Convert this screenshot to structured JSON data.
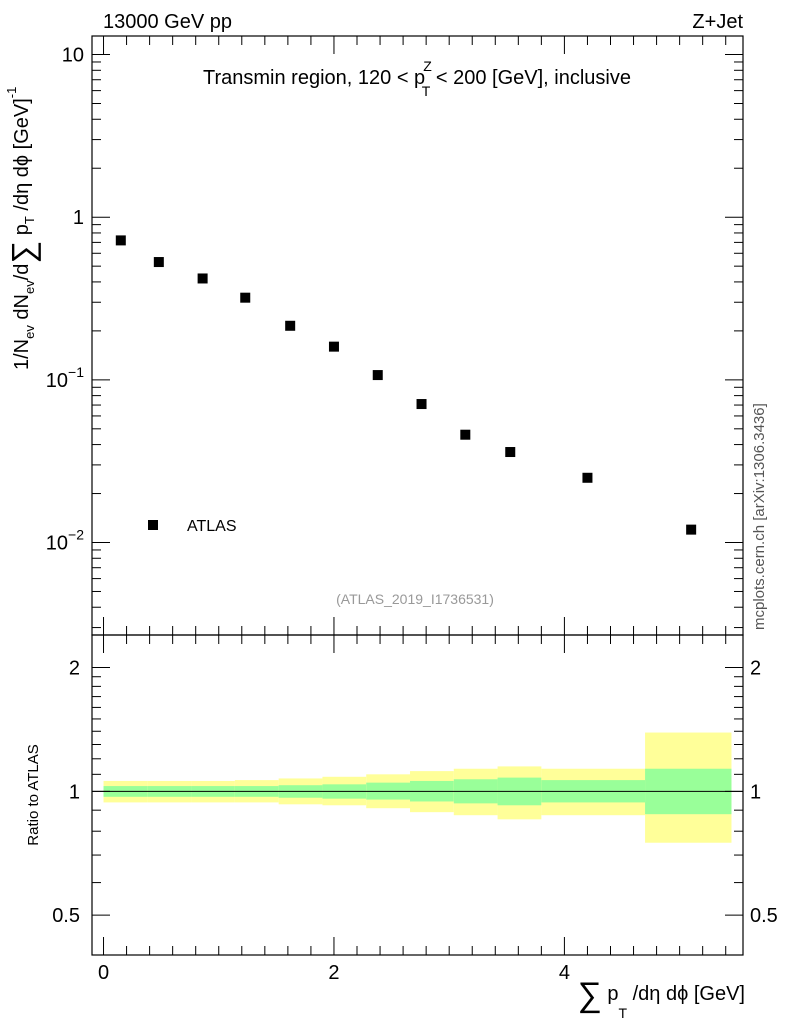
{
  "header": {
    "left": "13000 GeV pp",
    "right": "Z+Jet"
  },
  "side_label": "mcplots.cern.ch [arXiv:1306.3436]",
  "chart_data": [
    {
      "type": "scatter",
      "title_main": "Transmin region, 120 < p",
      "title_sup": "Z",
      "title_sub": "T",
      "title_tail": " < 200 [GeV], inclusive",
      "analysis_label": "(ATLAS_2019_I1736531)",
      "ylabel": {
        "p1": "1/N",
        "s1": "ev",
        "p2": " dN",
        "s2": "ev",
        "p3": "/d",
        "sum": "∑",
        "p4": " p",
        "s4": "T",
        "p5": " /dη dϕ  [GeV]",
        "sup": "-1"
      },
      "yscale": "log",
      "ylim": [
        0.0027,
        13
      ],
      "xlim": [
        -0.1,
        5.55
      ],
      "y_ticks": [
        {
          "value": 10,
          "label": "10"
        },
        {
          "value": 1,
          "label": "1"
        },
        {
          "value": 0.1,
          "base": "10",
          "exp": "−1"
        },
        {
          "value": 0.01,
          "base": "10",
          "exp": "−2"
        }
      ],
      "legend": {
        "position": "bottom-left",
        "entry": "ATLAS"
      },
      "series": [
        {
          "name": "ATLAS",
          "color": "#000000",
          "x": [
            0.15,
            0.48,
            0.86,
            1.23,
            1.62,
            2.0,
            2.38,
            2.76,
            3.14,
            3.53,
            4.2,
            5.1
          ],
          "y": [
            0.72,
            0.53,
            0.42,
            0.32,
            0.215,
            0.16,
            0.107,
            0.071,
            0.046,
            0.036,
            0.025,
            0.012
          ]
        }
      ]
    },
    {
      "type": "area",
      "ylabel": "Ratio to ATLAS",
      "yscale": "log",
      "ylim": [
        0.4,
        2.4
      ],
      "xlim": [
        -0.1,
        5.55
      ],
      "x_ticks": [
        {
          "value": 0,
          "label": "0"
        },
        {
          "value": 2,
          "label": "2"
        },
        {
          "value": 4,
          "label": "4"
        }
      ],
      "y_ticks": [
        {
          "value": 2,
          "label": "2"
        },
        {
          "value": 1,
          "label": "1"
        },
        {
          "value": 0.5,
          "label": "0.5"
        }
      ],
      "xlabel": {
        "sum": "∑",
        "p": " p",
        "sub": "T",
        "tail": " /dη dϕ [GeV]"
      },
      "reference_line": 1,
      "band_colors": {
        "outer": "#ffff99",
        "inner": "#99ff99"
      },
      "bins": [
        {
          "x0": 0.0,
          "x1": 0.38,
          "inner": [
            0.97,
            1.03
          ],
          "outer": [
            0.94,
            1.06
          ]
        },
        {
          "x0": 0.38,
          "x1": 0.76,
          "inner": [
            0.97,
            1.03
          ],
          "outer": [
            0.94,
            1.06
          ]
        },
        {
          "x0": 0.76,
          "x1": 1.14,
          "inner": [
            0.97,
            1.03
          ],
          "outer": [
            0.94,
            1.06
          ]
        },
        {
          "x0": 1.14,
          "x1": 1.52,
          "inner": [
            0.97,
            1.03
          ],
          "outer": [
            0.94,
            1.065
          ]
        },
        {
          "x0": 1.52,
          "x1": 1.9,
          "inner": [
            0.965,
            1.035
          ],
          "outer": [
            0.93,
            1.075
          ]
        },
        {
          "x0": 1.9,
          "x1": 2.28,
          "inner": [
            0.96,
            1.04
          ],
          "outer": [
            0.925,
            1.085
          ]
        },
        {
          "x0": 2.28,
          "x1": 2.66,
          "inner": [
            0.955,
            1.05
          ],
          "outer": [
            0.91,
            1.1
          ]
        },
        {
          "x0": 2.66,
          "x1": 3.04,
          "inner": [
            0.945,
            1.06
          ],
          "outer": [
            0.89,
            1.12
          ]
        },
        {
          "x0": 3.04,
          "x1": 3.42,
          "inner": [
            0.935,
            1.07
          ],
          "outer": [
            0.875,
            1.135
          ]
        },
        {
          "x0": 3.42,
          "x1": 3.8,
          "inner": [
            0.925,
            1.08
          ],
          "outer": [
            0.855,
            1.15
          ]
        },
        {
          "x0": 3.8,
          "x1": 4.7,
          "inner": [
            0.94,
            1.065
          ],
          "outer": [
            0.875,
            1.135
          ]
        },
        {
          "x0": 4.7,
          "x1": 5.45,
          "inner": [
            0.88,
            1.135
          ],
          "outer": [
            0.75,
            1.39
          ]
        }
      ]
    }
  ]
}
